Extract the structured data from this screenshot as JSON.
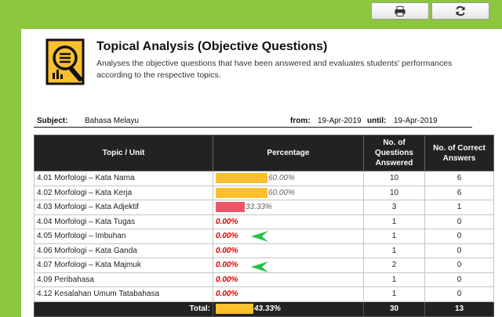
{
  "toolbar": {
    "print_icon": "printer-icon",
    "refresh_icon": "refresh-icon"
  },
  "report": {
    "title": "Topical Analysis (Objective Questions)",
    "description": "Analyses the objective questions that have been answered and evaluates students' performances according to the respective topics.",
    "icon": "report-magnifier-icon"
  },
  "info": {
    "subject_label": "Subject:",
    "subject_value": "Bahasa Melayu",
    "from_label": "from:",
    "from_value": "19-Apr-2019",
    "until_label": "until:",
    "until_value": "19-Apr-2019"
  },
  "table": {
    "headers": [
      "Topic / Unit",
      "Percentage",
      "No. of Questions Answered",
      "No. of Correct Answers"
    ],
    "rows": [
      {
        "topic": "4.01 Morfologi – Kata Nama",
        "percent_value": 60.0,
        "percent": "60.00%",
        "answered": "10",
        "correct": "6"
      },
      {
        "topic": "4.02 Morfologi – Kata Kerja",
        "percent_value": 60.0,
        "percent": "60.00%",
        "answered": "10",
        "correct": "6"
      },
      {
        "topic": "4.03 Morfologi – Kata Adjektif",
        "percent_value": 33.33,
        "percent": "33.33%",
        "answered": "3",
        "correct": "1"
      },
      {
        "topic": "4.04 Morfologi – Kata Tugas",
        "percent_value": 0,
        "percent": "0.00%",
        "answered": "1",
        "correct": "0"
      },
      {
        "topic": "4.05 Morfologi – Imbuhan",
        "percent_value": 0,
        "percent": "0.00%",
        "answered": "1",
        "correct": "0"
      },
      {
        "topic": "4.06 Morfologi – Kata Ganda",
        "percent_value": 0,
        "percent": "0.00%",
        "answered": "1",
        "correct": "0"
      },
      {
        "topic": "4.07 Morfologi – Kata Majmuk",
        "percent_value": 0,
        "percent": "0.00%",
        "answered": "2",
        "correct": "0"
      },
      {
        "topic": "4.09 Peribahasa",
        "percent_value": 0,
        "percent": "0.00%",
        "answered": "1",
        "correct": "0"
      },
      {
        "topic": "4.12 Kesalahan Umum Tatabahasa",
        "percent_value": 0,
        "percent": "0.00%",
        "answered": "1",
        "correct": "0"
      }
    ],
    "total": {
      "label": "Total:",
      "percent_value": 43.33,
      "percent": "43.33%",
      "answered": "30",
      "correct": "13"
    }
  },
  "colors": {
    "background": "#8cc63f",
    "bar_good": "#fbc02d",
    "bar_low": "#ef5466",
    "zero_text": "#e00000",
    "arrow": "#22c24a",
    "header": "#222222"
  }
}
